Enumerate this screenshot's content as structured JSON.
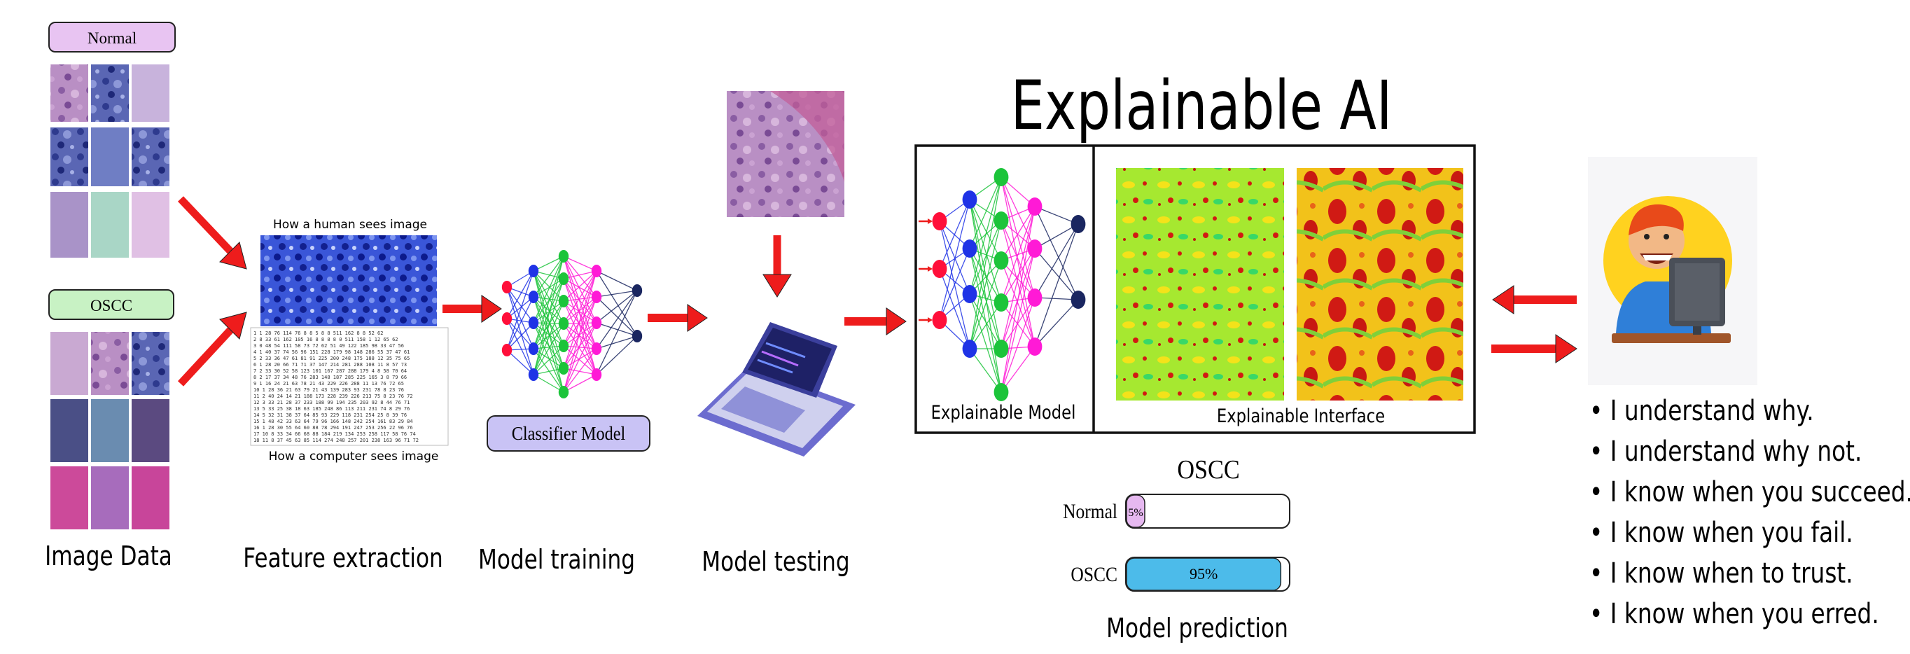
{
  "stages": {
    "image_data": "Image Data",
    "feature_extraction": "Feature extraction",
    "model_training": "Model training",
    "model_testing": "Model testing",
    "model_prediction": "Model prediction"
  },
  "image_data": {
    "normal_label": "Normal",
    "oscc_label": "OSCC"
  },
  "feature_extraction": {
    "human_caption": "How a human sees image",
    "computer_caption": "How a computer sees image",
    "pixel_rows": [
      "1 1 28 76 114 76 8 8 5 8 8 511 162 8 8 52 62",
      "2 8 33 61 162 105 16 8 8 8 8 0 511 158 1 12 65 62",
      "3 0 48 54 111 58 73 72 62 51 49 122 185 98 33 47 56",
      "4 1 40 37 74 56 96 151 228 179 98 148 286 55 37 47 61",
      "5 2 33 36 47 61 81 91 225 200 248 175 188 12 35 75 65",
      "6 1 28 20 66 71 71 37 147 214 281 288 108 11 8 57 73",
      "7 2 33 30 52 58 123 101 167 287 288 179 4 8 58 70 64",
      "8 2 17 37 34 48 76 283 148 187 285 225 165 3 8 79 66",
      "9 1 16 24 21 63 78 21 43 229 226 288 11 13 76 72 65",
      "10 1 28 36 21 63 79 21 43 139 283 93 231 78 8 23 76",
      "11 2 40 24 14 21 188 173 228 239 226 213 75 8 23 76 72",
      "12 3 33 21 28 37 233 188 99 194 235 203 92 8 44 76 71",
      "13 5 33 25 38 18 63 185 248 86 113 211 231 74 8 29 76",
      "14 5 32 31 38 37 64 85 93 229 118 231 254 25 8 39 76",
      "15 1 48 42 33 63 64 79 96 166 148 242 254 161 83 29 84",
      "16 1 28 30 55 64 60 88 78 294 191 247 253 256 22 96 76",
      "17 10 8 33 34 66 68 88 184 219 134 253 258 117 58 76 74",
      "18 11 8 37 45 63 85 114 274 248 257 201 238 163 96 71 72"
    ]
  },
  "model_training": {
    "classifier_label": "Classifier Model"
  },
  "xai": {
    "title": "Explainable AI",
    "model_label": "Explainable Model",
    "interface_label": "Explainable Interface"
  },
  "prediction": {
    "title": "OSCC",
    "bars": [
      {
        "label": "Normal",
        "value": 5,
        "display": "5%",
        "color": "#e6b8f0"
      },
      {
        "label": "OSCC",
        "value": 95,
        "display": "95%",
        "color": "#4cbbea"
      }
    ]
  },
  "user_statements": [
    "• I understand why.",
    "• I understand why not.",
    "• I know when you succeed.",
    "• I know when you fail.",
    "• I know when to trust.",
    "• I know when you erred."
  ],
  "colors": {
    "arrow": "#ee1c1c",
    "normal_pill": "#e8c4f2",
    "oscc_pill": "#c8f2c4",
    "classifier_pill": "#c9c3f5",
    "nn_input": "#ff0f3a",
    "nn_hidden1": "#1f33e6",
    "nn_hidden2": "#1cc43a",
    "nn_hidden3": "#ff1ad6",
    "nn_output": "#1a2660"
  },
  "icons": {
    "laptop": "laptop-icon",
    "user": "developer-avatar-icon",
    "network": "neural-network-icon"
  }
}
